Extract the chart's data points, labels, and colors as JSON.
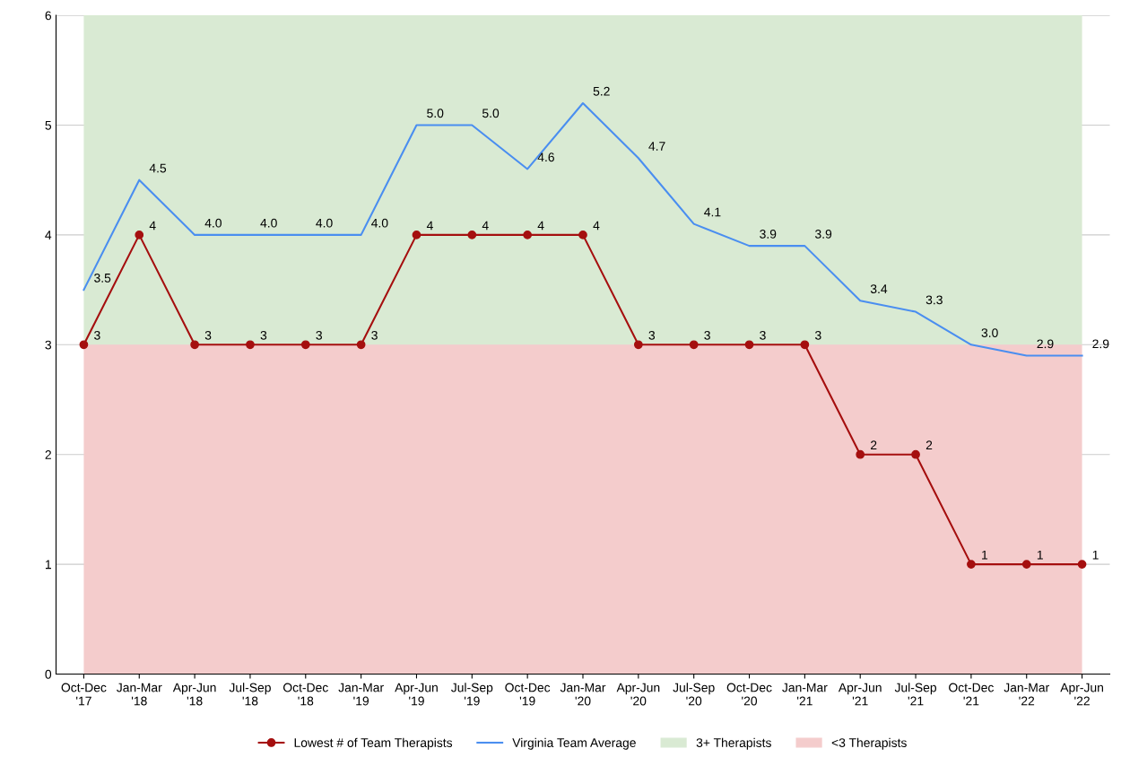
{
  "chart_data": {
    "type": "line",
    "categories": [
      "Oct-Dec\n'17",
      "Jan-Mar\n'18",
      "Apr-Jun\n'18",
      "Jul-Sep\n'18",
      "Oct-Dec\n'18",
      "Jan-Mar\n'19",
      "Apr-Jun\n'19",
      "Jul-Sep\n'19",
      "Oct-Dec\n'19",
      "Jan-Mar\n'20",
      "Apr-Jun\n'20",
      "Jul-Sep\n'20",
      "Oct-Dec\n'20",
      "Jan-Mar\n'21",
      "Apr-Jun\n'21",
      "Jul-Sep\n'21",
      "Oct-Dec\n'21",
      "Jan-Mar\n'22",
      "Apr-Jun\n'22"
    ],
    "series": [
      {
        "name": "Lowest # of Team Therapists",
        "color": "#a50f0f",
        "marker": "circle",
        "values": [
          3,
          4,
          3,
          3,
          3,
          3,
          4,
          4,
          4,
          4,
          3,
          3,
          3,
          3,
          2,
          2,
          1,
          1,
          1
        ],
        "value_labels": [
          "3",
          "4",
          "3",
          "3",
          "3",
          "3",
          "4",
          "4",
          "4",
          "4",
          "3",
          "3",
          "3",
          "3",
          "2",
          "2",
          "1",
          "1",
          "1"
        ]
      },
      {
        "name": "Virginia Team Average",
        "color": "#4a8ef0",
        "marker": "none",
        "values": [
          3.5,
          4.5,
          4.0,
          4.0,
          4.0,
          4.0,
          5.0,
          5.0,
          4.6,
          5.2,
          4.7,
          4.1,
          3.9,
          3.9,
          3.4,
          3.3,
          3.0,
          2.9,
          2.9
        ],
        "value_labels": [
          "3.5",
          "4.5",
          "4.0",
          "4.0",
          "4.0",
          "4.0",
          "5.0",
          "5.0",
          "4.6",
          "5.2",
          "4.7",
          "4.1",
          "3.9",
          "3.9",
          "3.4",
          "3.3",
          "3.0",
          "2.9",
          "2.9"
        ]
      }
    ],
    "bands": [
      {
        "axis": "y",
        "from": 3,
        "to": 6,
        "label": "3+ Therapists",
        "color": "#d9ead3"
      },
      {
        "axis": "y",
        "from": 0,
        "to": 3,
        "label": "<3 Therapists",
        "color": "#f4cccc"
      }
    ],
    "ylim": [
      0,
      6
    ],
    "yticks": [
      0,
      1,
      2,
      3,
      4,
      5,
      6
    ],
    "grid": "y",
    "legend": "bottom",
    "line_style": "solid"
  }
}
